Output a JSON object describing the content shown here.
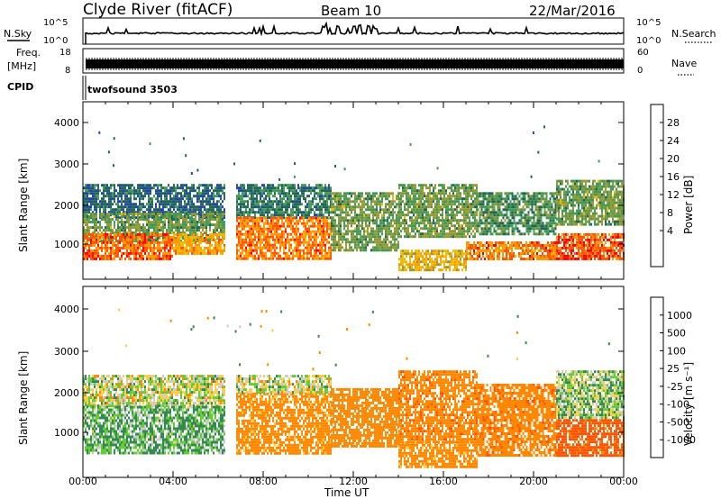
{
  "header": {
    "station": "Clyde River (fitACF)",
    "beam": "Beam 10",
    "date": "22/Mar/2016"
  },
  "labels": {
    "nsky": "N.Sky",
    "nsearch": "N.Search",
    "freq_line1": "Freq.",
    "freq_line2": "[MHz]",
    "nave": "Nave",
    "cpid": "CPID",
    "cpid_value": "twofsound 3503",
    "time_axis": "Time UT"
  },
  "noise_panel": {
    "left_ticks": [
      "10^5",
      "10^0"
    ],
    "right_ticks": [
      "10^5",
      "10^0"
    ]
  },
  "freq_panel": {
    "left_ticks": [
      "18",
      "8"
    ],
    "right_ticks": [
      "60",
      "0"
    ]
  },
  "colorbars": {
    "power": {
      "label": "Power [dB]",
      "ticks": [
        "28",
        "24",
        "20",
        "16",
        "12",
        "8",
        "4"
      ],
      "colors": [
        "#ff0000",
        "#ff5500",
        "#ff9900",
        "#eebb00",
        "#999933",
        "#449955",
        "#226655",
        "#2244aa",
        "#0000ff"
      ]
    },
    "velocity": {
      "label": "Velocity [m s⁻¹]",
      "ticks": [
        "1000",
        "500",
        "100",
        "25",
        "-25",
        "-100",
        "-500",
        "-1000"
      ],
      "colors": [
        "#2233aa",
        "#336677",
        "#338855",
        "#66cc33",
        "#cccccc",
        "#ffcc44",
        "#ff8800",
        "#ff5500",
        "#ff0000"
      ]
    }
  },
  "chart_data": [
    {
      "type": "heatmap",
      "title": "Power",
      "xlabel": "",
      "ylabel": "Slant Range [km]",
      "x_ticks": [
        "00:00",
        "04:00",
        "08:00",
        "12:00",
        "16:00",
        "20:00",
        "00:00"
      ],
      "y_ticks": [
        "4000",
        "3000",
        "2000",
        "1000"
      ],
      "xlim_hours": [
        0,
        24
      ],
      "ylim_km": [
        180,
        4500
      ],
      "bands": [
        {
          "x0": 0.0,
          "x1": 6.3,
          "y0": 1700,
          "y1": 2500,
          "value": 8
        },
        {
          "x0": 0.0,
          "x1": 6.3,
          "y0": 1100,
          "y1": 1800,
          "value": 14
        },
        {
          "x0": 0.0,
          "x1": 4.0,
          "y0": 700,
          "y1": 1300,
          "value": 26
        },
        {
          "x0": 4.0,
          "x1": 6.3,
          "y0": 800,
          "y1": 1300,
          "value": 22
        },
        {
          "x0": 6.8,
          "x1": 11.0,
          "y0": 1700,
          "y1": 2500,
          "value": 10
        },
        {
          "x0": 6.8,
          "x1": 11.0,
          "y0": 700,
          "y1": 1700,
          "value": 25
        },
        {
          "x0": 11.0,
          "x1": 14.0,
          "y0": 900,
          "y1": 2300,
          "value": 14
        },
        {
          "x0": 14.0,
          "x1": 17.5,
          "y0": 1200,
          "y1": 2500,
          "value": 14
        },
        {
          "x0": 14.0,
          "x1": 17.0,
          "y0": 400,
          "y1": 900,
          "value": 20
        },
        {
          "x0": 17.0,
          "x1": 21.0,
          "y0": 650,
          "y1": 1100,
          "value": 25
        },
        {
          "x0": 17.5,
          "x1": 21.0,
          "y0": 1300,
          "y1": 2300,
          "value": 12
        },
        {
          "x0": 21.0,
          "x1": 24.0,
          "y0": 700,
          "y1": 1300,
          "value": 27
        },
        {
          "x0": 21.0,
          "x1": 24.0,
          "y0": 1500,
          "y1": 2600,
          "value": 14
        }
      ]
    },
    {
      "type": "heatmap",
      "title": "Velocity",
      "xlabel": "Time UT",
      "ylabel": "Slant Range [km]",
      "x_ticks": [
        "00:00",
        "04:00",
        "08:00",
        "12:00",
        "16:00",
        "20:00",
        "00:00"
      ],
      "y_ticks": [
        "4000",
        "3000",
        "2000",
        "1000"
      ],
      "xlim_hours": [
        0,
        24
      ],
      "ylim_km": [
        180,
        4500
      ],
      "bands": [
        {
          "x0": 0.0,
          "x1": 6.3,
          "y0": 1800,
          "y1": 2500,
          "value": 0
        },
        {
          "x0": 0.0,
          "x1": 6.3,
          "y0": 700,
          "y1": 1800,
          "value": 100
        },
        {
          "x0": 6.8,
          "x1": 11.0,
          "y0": 700,
          "y1": 2100,
          "value": -200
        },
        {
          "x0": 6.8,
          "x1": 11.0,
          "y0": 2100,
          "y1": 2500,
          "value": 0
        },
        {
          "x0": 11.0,
          "x1": 14.0,
          "y0": 900,
          "y1": 2200,
          "value": -300
        },
        {
          "x0": 14.0,
          "x1": 17.5,
          "y0": 1000,
          "y1": 2600,
          "value": -400
        },
        {
          "x0": 14.0,
          "x1": 17.5,
          "y0": 400,
          "y1": 1000,
          "value": -200
        },
        {
          "x0": 17.5,
          "x1": 21.0,
          "y0": 650,
          "y1": 2300,
          "value": -400
        },
        {
          "x0": 21.0,
          "x1": 24.0,
          "y0": 700,
          "y1": 1500,
          "value": -600
        },
        {
          "x0": 21.0,
          "x1": 24.0,
          "y0": 1500,
          "y1": 2600,
          "value": 50
        }
      ]
    }
  ]
}
